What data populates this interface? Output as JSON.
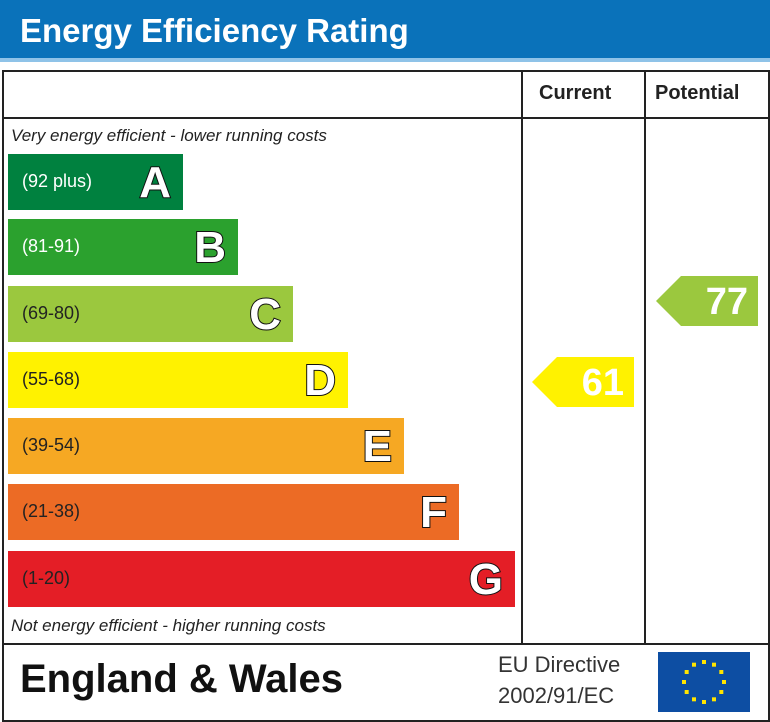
{
  "title": "Energy Efficiency Rating",
  "columns": {
    "current": "Current",
    "potential": "Potential"
  },
  "notes": {
    "top": "Very energy efficient - lower running costs",
    "bottom": "Not energy efficient - higher running costs"
  },
  "chart_data": {
    "type": "bar",
    "bands": [
      {
        "letter": "A",
        "range": "(92 plus)",
        "color": "#00813f"
      },
      {
        "letter": "B",
        "range": "(81-91)",
        "color": "#2ba12e"
      },
      {
        "letter": "C",
        "range": "(69-80)",
        "color": "#9bc83e"
      },
      {
        "letter": "D",
        "range": "(55-68)",
        "color": "#fff200"
      },
      {
        "letter": "E",
        "range": "(39-54)",
        "color": "#f6a823"
      },
      {
        "letter": "F",
        "range": "(21-38)",
        "color": "#ec6b25"
      },
      {
        "letter": "G",
        "range": "(1-20)",
        "color": "#e41e26"
      }
    ],
    "current": {
      "value": "61",
      "band": "D",
      "color": "#fff200"
    },
    "potential": {
      "value": "77",
      "band": "C",
      "color": "#9bc83e"
    }
  },
  "footer": {
    "region": "England & Wales",
    "directive_line1": "EU Directive",
    "directive_line2": "2002/91/EC",
    "flag": "eu-flag-icon"
  }
}
